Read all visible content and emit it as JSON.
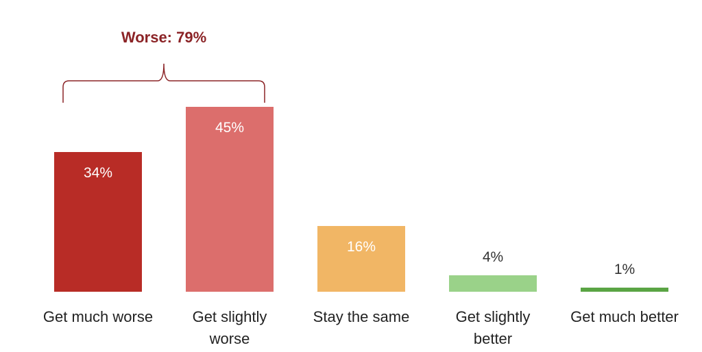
{
  "chart_data": {
    "type": "bar",
    "categories": [
      [
        "Get much worse"
      ],
      [
        "Get slightly",
        "worse"
      ],
      [
        "Stay the same"
      ],
      [
        "Get slightly",
        "better"
      ],
      [
        "Get much better"
      ]
    ],
    "values": [
      34,
      45,
      16,
      4,
      1
    ],
    "value_labels": [
      "34%",
      "45%",
      "16%",
      "4%",
      "1%"
    ],
    "colors": [
      "#b82c26",
      "#dc6e6c",
      "#f1b665",
      "#9ad289",
      "#5aa444"
    ],
    "title": "",
    "xlabel": "",
    "ylabel": "",
    "grid": false,
    "annotation": {
      "text": "Worse: 79%",
      "color": "#8b2326",
      "spans": [
        0,
        1
      ]
    }
  }
}
